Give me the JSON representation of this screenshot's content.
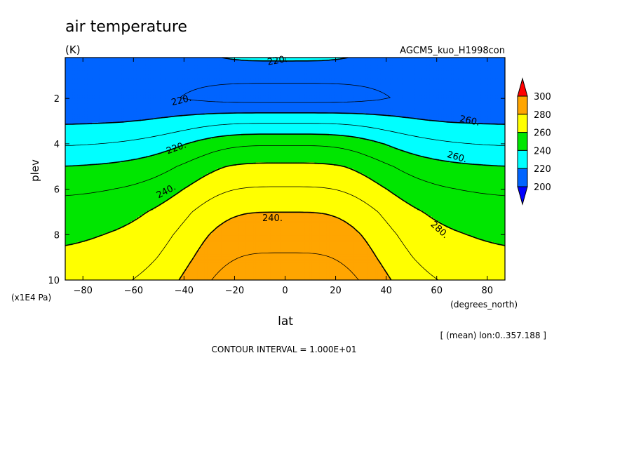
{
  "chart_data": {
    "type": "contour",
    "title": "air temperature",
    "units": "(K)",
    "experiment": "AGCM5_kuo_H1998con",
    "xlabel": "lat",
    "xunit": "(degrees_north)",
    "ylabel": "plev",
    "yunit": "(x1E4 Pa)",
    "xlim": [
      -87,
      87
    ],
    "ylim": [
      10,
      0.2
    ],
    "xticks": [
      -80,
      -60,
      -40,
      -20,
      0,
      20,
      40,
      60,
      80
    ],
    "yticks": [
      2,
      4,
      6,
      8,
      10
    ],
    "colorbar": {
      "levels": [
        200,
        220,
        240,
        260,
        280,
        300
      ],
      "tick_labels": [
        "200",
        "220",
        "240",
        "260",
        "280",
        "300"
      ],
      "colors": [
        "#0000ff",
        "#0064ff",
        "#00ffff",
        "#00e600",
        "#ffff00",
        "#ffa500",
        "#ff0000"
      ]
    },
    "contour_labels": [
      "220.",
      "220.",
      "220.",
      "240.",
      "240.",
      "260.",
      "260.",
      "280."
    ],
    "contour_interval_text": "CONTOUR INTERVAL = 1.000E+01",
    "mean_note": "[ (mean) lon:0..357.188 ]",
    "field": {
      "lat": [
        -87,
        -80,
        -70,
        -60,
        -50,
        -40,
        -30,
        -20,
        -10,
        0,
        10,
        20,
        30,
        40,
        50,
        60,
        70,
        80,
        87
      ],
      "plev": [
        0.2,
        0.5,
        1,
        1.5,
        2,
        2.5,
        3,
        3.5,
        4,
        4.5,
        5,
        5.5,
        6,
        6.5,
        7,
        7.5,
        8,
        8.5,
        9,
        9.5,
        10
      ],
      "upper_profile": {
        "plev": [
          0.2,
          0.5,
          1,
          2,
          3,
          4,
          5,
          6,
          7,
          8,
          9,
          10
        ],
        "tropics": [
          221,
          219,
          212,
          206,
          228,
          249,
          262,
          271,
          280,
          286,
          291,
          296
        ],
        "pole": [
          212,
          211,
          212,
          214,
          218,
          228,
          239,
          247,
          253,
          257,
          260,
          264
        ]
      }
    }
  }
}
